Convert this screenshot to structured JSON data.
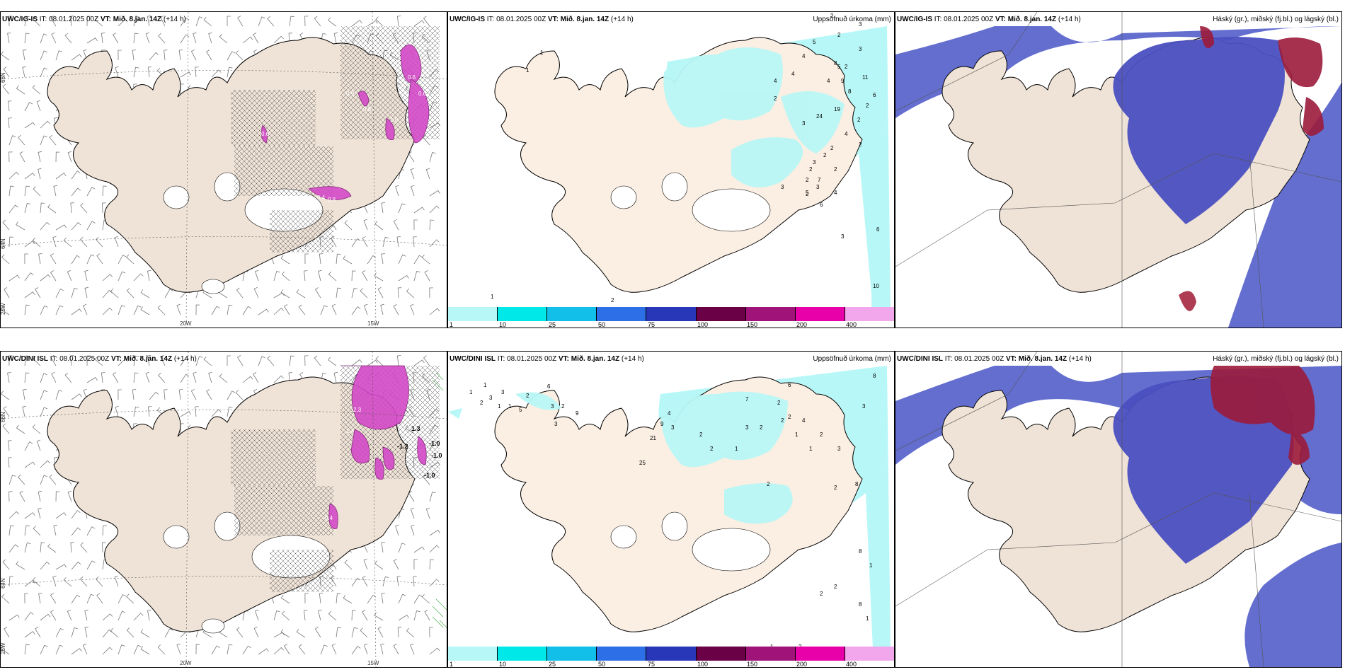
{
  "rows": [
    {
      "model": "UWC/IG-IS",
      "it_label": "IT: 08.01.2025 00Z",
      "vt_label": "VT: Mið. 8.jan. 14Z",
      "lead": "(+14 h)"
    },
    {
      "model": "UWC/DINI ISL",
      "it_label": "IT: 08.01.2025 00Z",
      "vt_label": "VT: Mið. 8.jan. 14Z",
      "lead": "(+14 h)"
    }
  ],
  "precip_title": "Uppsöfnuð úrkoma (mm)",
  "cloud_title": "Háský (gr.), miðský (fj.bl.) og lágský (bl.)",
  "colorbar": {
    "ticks": [
      "1",
      "10",
      "25",
      "50",
      "75",
      "100",
      "150",
      "200",
      "400"
    ],
    "colors": [
      "#b8f7f7",
      "#00e8e8",
      "#12bfe8",
      "#2c6fe6",
      "#2737b8",
      "#6a0045",
      "#a0147a",
      "#e800a8",
      "#f2a6ec"
    ]
  },
  "axis_labels": {
    "lat_66": "66N",
    "lat_64": "64N",
    "lon_25": "25W",
    "lon_20": "20W",
    "lon_15": "15W"
  },
  "precip_values_top": [
    "2",
    "3",
    "3",
    "2",
    "2",
    "5",
    "4",
    "8",
    "5",
    "4",
    "4",
    "9",
    "11",
    "8",
    "6",
    "2",
    "3",
    "4",
    "2",
    "24",
    "19",
    "2",
    "4",
    "2",
    "2",
    "2",
    "3",
    "2",
    "2",
    "2",
    "2",
    "7",
    "3",
    "3",
    "5",
    "4",
    "6",
    "3",
    "2",
    "6",
    "10",
    "3",
    "6",
    "1",
    "1",
    "1",
    "1"
  ],
  "precip_values_bottom": [
    "1",
    "3",
    "3",
    "6",
    "2",
    "3",
    "2",
    "5",
    "3",
    "9",
    "4",
    "7",
    "6",
    "8",
    "2",
    "2",
    "4",
    "9",
    "3",
    "2",
    "21",
    "2",
    "25",
    "1",
    "3",
    "2",
    "2",
    "1",
    "2",
    "1",
    "2",
    "3",
    "2",
    "3",
    "8",
    "8",
    "8",
    "2",
    "2",
    "2",
    "1",
    "1",
    "1",
    "2",
    "1",
    "1",
    "1"
  ],
  "lifted_values_top": [
    "0.9",
    "0.6",
    "0.6",
    "0.6",
    "0.5",
    "0.4",
    "0.8",
    "0.8",
    "1.0"
  ],
  "lifted_values_bottom": [
    "-1.0",
    "-1.0",
    "-1.2",
    "-1.0",
    "1.3",
    "2.3",
    "0.4",
    "1.4"
  ]
}
